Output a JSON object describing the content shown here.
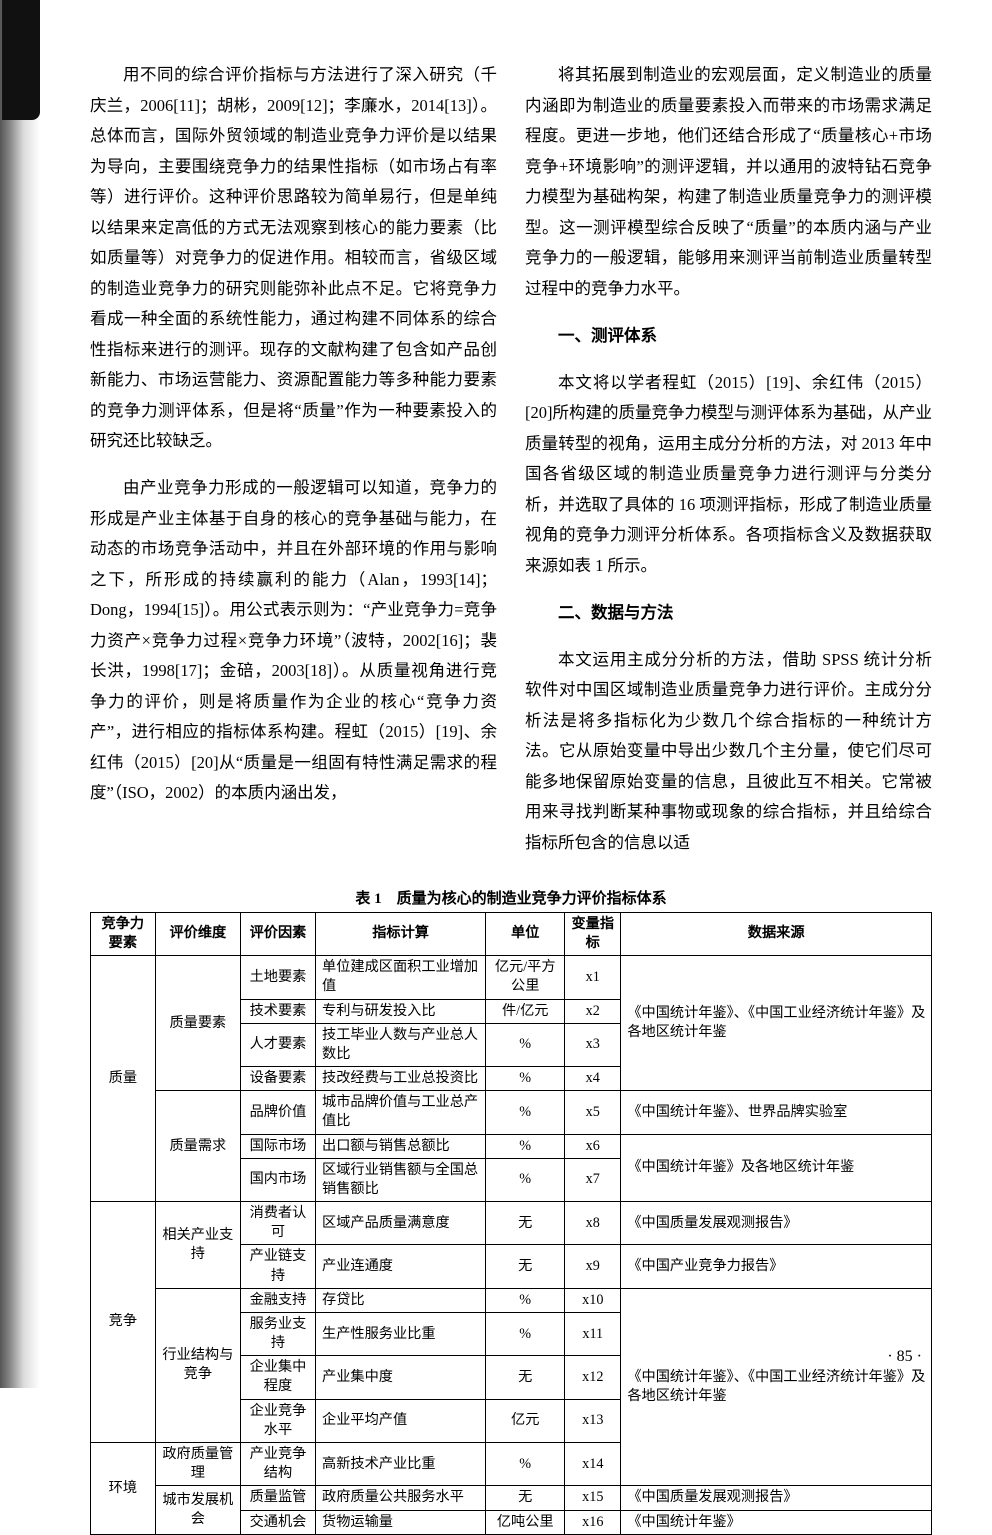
{
  "para1": "用不同的综合评价指标与方法进行了深入研究（千庆兰，2006[11]；胡彬，2009[12]；李廉水，2014[13]）。总体而言，国际外贸领域的制造业竞争力评价是以结果为导向，主要围绕竞争力的结果性指标（如市场占有率等）进行评价。这种评价思路较为简单易行，但是单纯以结果来定高低的方式无法观察到核心的能力要素（比如质量等）对竞争力的促进作用。相较而言，省级区域的制造业竞争力的研究则能弥补此点不足。它将竞争力看成一种全面的系统性能力，通过构建不同体系的综合性指标来进行的测评。现存的文献构建了包含如产品创新能力、市场运营能力、资源配置能力等多种能力要素的竞争力测评体系，但是将“质量”作为一种要素投入的研究还比较缺乏。",
  "para2": "由产业竞争力形成的一般逻辑可以知道，竞争力的形成是产业主体基于自身的核心的竞争基础与能力，在动态的市场竞争活动中，并且在外部环境的作用与影响之下，所形成的持续赢利的能力（Alan，1993[14]；Dong，1994[15]）。用公式表示则为：“产业竞争力=竞争力资产×竞争力过程×竞争力环境”（波特，2002[16]；裴长洪，1998[17]；金碚，2003[18]）。从质量视角进行竞争力的评价，则是将质量作为企业的核心“竞争力资产”，进行相应的指标体系构建。程虹（2015）[19]、余红伟（2015）[20]从“质量是一组固有特性满足需求的程度”（ISO，2002）的本质内涵出发，",
  "para3": "将其拓展到制造业的宏观层面，定义制造业的质量内涵即为制造业的质量要素投入而带来的市场需求满足程度。更进一步地，他们还结合形成了“质量核心+市场竞争+环境影响”的测评逻辑，并以通用的波特钻石竞争力模型为基础构架，构建了制造业质量竞争力的测评模型。这一测评模型综合反映了“质量”的本质内涵与产业竞争力的一般逻辑，能够用来测评当前制造业质量转型过程中的竞争力水平。",
  "sectionA": "一、测评体系",
  "para4": "本文将以学者程虹（2015）[19]、余红伟（2015）[20]所构建的质量竞争力模型与测评体系为基础，从产业质量转型的视角，运用主成分分析的方法，对 2013 年中国各省级区域的制造业质量竞争力进行测评与分类分析，并选取了具体的 16 项测评指标，形成了制造业质量视角的竞争力测评分析体系。各项指标含义及数据获取来源如表 1 所示。",
  "sectionB": "二、数据与方法",
  "para5": "本文运用主成分分析的方法，借助 SPSS 统计分析软件对中国区域制造业质量竞争力进行评价。主成分分析法是将多指标化为少数几个综合指标的一种统计方法。它从原始变量中导出少数几个主分量，使它们尽可能多地保留原始变量的信息，且彼此互不相关。它常被用来寻找判断某种事物或现象的综合指标，并且给综合指标所包含的信息以适",
  "tableTitle": "表 1　质量为核心的制造业竞争力评价指标体系",
  "headers": {
    "c1": "竞争力要素",
    "c2": "评价维度",
    "c3": "评价因素",
    "c4": "指标计算",
    "c5": "单位",
    "c6": "变量指标",
    "c7": "数据来源"
  },
  "groups": {
    "quality": "质量",
    "compete": "竞争",
    "env": "环境"
  },
  "dims": {
    "d1": "质量要素",
    "d2": "质量需求",
    "d3": "相关产业支持",
    "d4": "行业结构与竞争",
    "d5": "政府质量管理",
    "d6": "城市发展机会"
  },
  "rows": {
    "r1": {
      "factor": "土地要素",
      "calc": "单位建成区面积工业增加值",
      "unit": "亿元/平方公里",
      "var": "x1"
    },
    "r2": {
      "factor": "技术要素",
      "calc": "专利与研发投入比",
      "unit": "件/亿元",
      "var": "x2"
    },
    "r3": {
      "factor": "人才要素",
      "calc": "技工毕业人数与产业总人数比",
      "unit": "%",
      "var": "x3"
    },
    "r4": {
      "factor": "设备要素",
      "calc": "技改经费与工业总投资比",
      "unit": "%",
      "var": "x4"
    },
    "r5": {
      "factor": "品牌价值",
      "calc": "城市品牌价值与工业总产值比",
      "unit": "%",
      "var": "x5"
    },
    "r6": {
      "factor": "国际市场",
      "calc": "出口额与销售总额比",
      "unit": "%",
      "var": "x6"
    },
    "r7": {
      "factor": "国内市场",
      "calc": "区域行业销售额与全国总销售额比",
      "unit": "%",
      "var": "x7"
    },
    "r8": {
      "factor": "消费者认可",
      "calc": "区域产品质量满意度",
      "unit": "无",
      "var": "x8"
    },
    "r9": {
      "factor": "产业链支持",
      "calc": "产业连通度",
      "unit": "无",
      "var": "x9"
    },
    "r10": {
      "factor": "金融支持",
      "calc": "存贷比",
      "unit": "%",
      "var": "x10"
    },
    "r11": {
      "factor": "服务业支持",
      "calc": "生产性服务业比重",
      "unit": "%",
      "var": "x11"
    },
    "r12": {
      "factor": "企业集中程度",
      "calc": "产业集中度",
      "unit": "无",
      "var": "x12"
    },
    "r13": {
      "factor": "企业竞争水平",
      "calc": "企业平均产值",
      "unit": "亿元",
      "var": "x13"
    },
    "r14": {
      "factor": "产业竞争结构",
      "calc": "高新技术产业比重",
      "unit": "%",
      "var": "x14"
    },
    "r15": {
      "factor": "质量监管",
      "calc": "政府质量公共服务水平",
      "unit": "无",
      "var": "x15"
    },
    "r16": {
      "factor": "交通机会",
      "calc": "货物运输量",
      "unit": "亿吨公里",
      "var": "x16"
    }
  },
  "sources": {
    "s1": "《中国统计年鉴》、《中国工业经济统计年鉴》及各地区统计年鉴",
    "s2": "《中国统计年鉴》、世界品牌实验室",
    "s3": "《中国统计年鉴》及各地区统计年鉴",
    "s4": "《中国质量发展观测报告》",
    "s5": "《中国产业竞争力报告》",
    "s6": "《中国统计年鉴》、《中国工业经济统计年鉴》及各地区统计年鉴",
    "s7": "《中国质量发展观测报告》",
    "s8": "《中国统计年鉴》"
  },
  "pageNum": "· 85 ·"
}
